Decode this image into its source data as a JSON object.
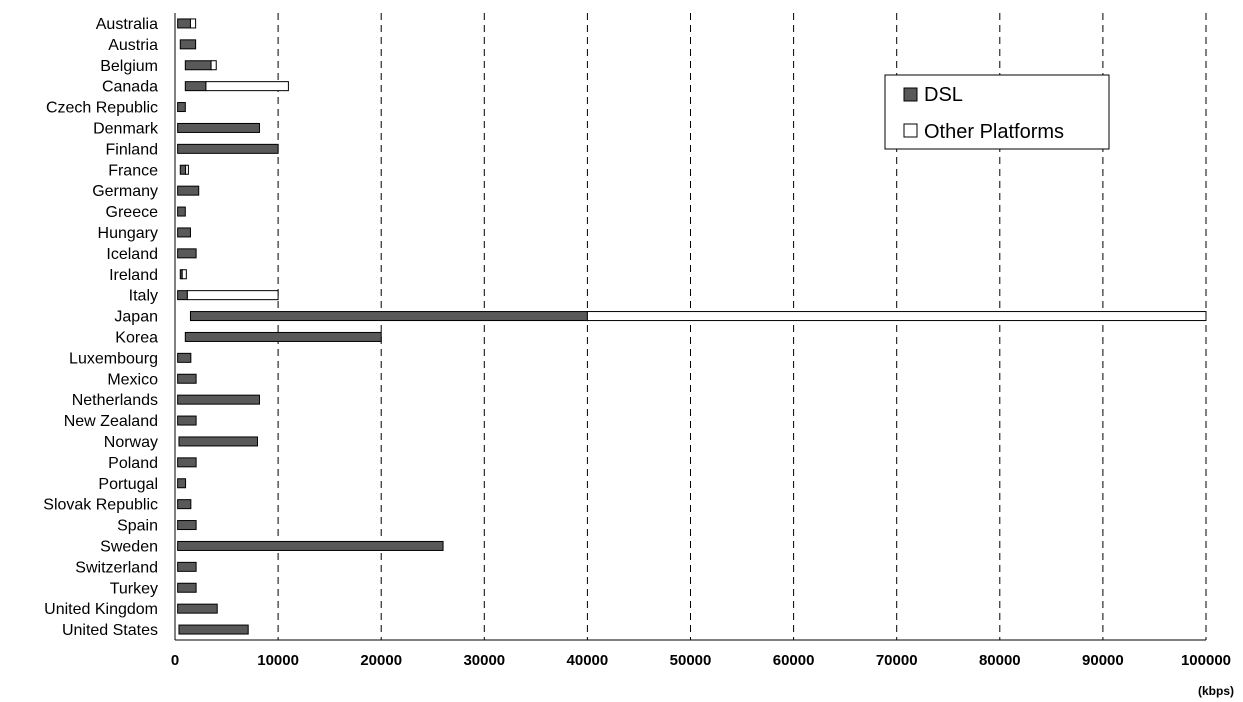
{
  "chart_data": {
    "type": "bar",
    "orientation": "horizontal",
    "stacking": "range",
    "title": "",
    "xlabel": "",
    "ylabel": "",
    "x_unit": "(kbps)",
    "xlim": [
      0,
      100000
    ],
    "x_ticks": [
      "0",
      "10000",
      "20000",
      "30000",
      "40000",
      "50000",
      "60000",
      "70000",
      "80000",
      "90000",
      "100000"
    ],
    "grid": "vertical-dashed",
    "legend_position": "top-right",
    "categories": [
      "Australia",
      "Austria",
      "Belgium",
      "Canada",
      "Czech Republic",
      "Denmark",
      "Finland",
      "France",
      "Germany",
      "Greece",
      "Hungary",
      "Iceland",
      "Ireland",
      "Italy",
      "Japan",
      "Korea",
      "Luxembourg",
      "Mexico",
      "Netherlands",
      "New Zealand",
      "Norway",
      "Poland",
      "Portugal",
      "Slovak Republic",
      "Spain",
      "Sweden",
      "Switzerland",
      "Turkey",
      "United Kingdom",
      "United States"
    ],
    "series": [
      {
        "name": "DSL",
        "color": "#595959",
        "ranges": [
          [
            256,
            1500
          ],
          [
            512,
            2000
          ],
          [
            1000,
            3500
          ],
          [
            1000,
            3000
          ],
          [
            256,
            1000
          ],
          [
            256,
            8192
          ],
          [
            256,
            10000
          ],
          [
            512,
            1024
          ],
          [
            256,
            2300
          ],
          [
            256,
            1000
          ],
          [
            256,
            1500
          ],
          [
            256,
            2048
          ],
          [
            512,
            700
          ],
          [
            256,
            1200
          ],
          [
            1500,
            40000
          ],
          [
            1000,
            20000
          ],
          [
            256,
            1536
          ],
          [
            256,
            2048
          ],
          [
            256,
            8192
          ],
          [
            256,
            2048
          ],
          [
            384,
            8000
          ],
          [
            256,
            2048
          ],
          [
            256,
            1024
          ],
          [
            256,
            1536
          ],
          [
            256,
            2048
          ],
          [
            256,
            26000
          ],
          [
            256,
            2048
          ],
          [
            256,
            2048
          ],
          [
            256,
            4096
          ],
          [
            384,
            7100
          ]
        ]
      },
      {
        "name": "Other Platforms",
        "color": "#ffffff",
        "ranges": [
          [
            1500,
            2000
          ],
          null,
          [
            3500,
            4000
          ],
          [
            3000,
            11000
          ],
          null,
          null,
          null,
          [
            1024,
            1300
          ],
          null,
          null,
          null,
          null,
          [
            700,
            1100
          ],
          [
            1200,
            10000
          ],
          [
            40000,
            100000
          ],
          null,
          null,
          null,
          null,
          null,
          null,
          null,
          null,
          null,
          null,
          null,
          null,
          null,
          null,
          null
        ]
      }
    ]
  }
}
